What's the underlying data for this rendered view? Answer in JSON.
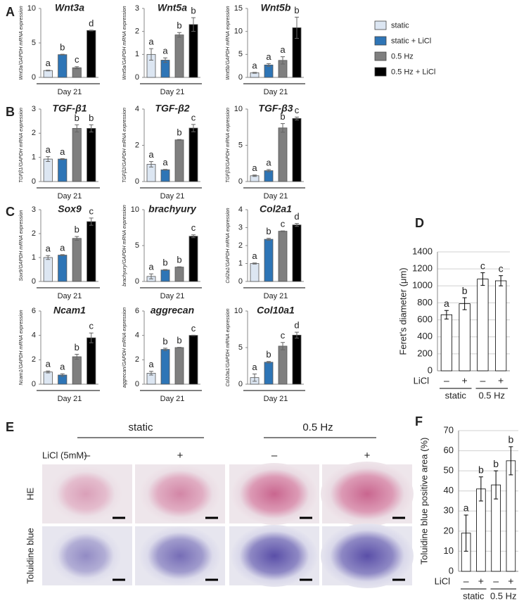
{
  "panel_labels": [
    "A",
    "B",
    "C",
    "D",
    "E",
    "F"
  ],
  "legend": [
    {
      "name": "static",
      "color": "#dce6f2"
    },
    {
      "name": "static + LiCl",
      "color": "#2e75b6"
    },
    {
      "name": "0.5 Hz",
      "color": "#7f7f7f"
    },
    {
      "name": "0.5 Hz + LiCl",
      "color": "#000000"
    }
  ],
  "chart_data": [
    {
      "type": "bar",
      "title": "Wnt3a",
      "ylabel": "Wnt3a/GAPDH mRNA expression",
      "xlabel": "Day 21",
      "values": [
        1.0,
        3.3,
        1.4,
        6.8
      ],
      "errors": [
        0.05,
        0.05,
        0.15,
        0.05
      ],
      "annotations": [
        "a",
        "b",
        "c",
        "d"
      ],
      "ylim": [
        0,
        10
      ],
      "yticks": [
        0,
        5,
        10
      ]
    },
    {
      "type": "bar",
      "title": "Wnt5a",
      "ylabel": "Wnt5a/GAPDH mRNA expression",
      "xlabel": "Day 21",
      "values": [
        1.0,
        0.75,
        1.85,
        2.3
      ],
      "errors": [
        0.25,
        0.1,
        0.1,
        0.3
      ],
      "annotations": [
        "a",
        "a",
        "b",
        "b"
      ],
      "ylim": [
        0,
        3
      ],
      "yticks": [
        0,
        1,
        2,
        3
      ]
    },
    {
      "type": "bar",
      "title": "Wnt5b",
      "ylabel": "Wnt5b/GAPDH mRNA expression",
      "xlabel": "Day 21",
      "values": [
        1.0,
        2.7,
        3.7,
        10.8
      ],
      "errors": [
        0.1,
        0.3,
        0.8,
        2.3
      ],
      "annotations": [
        "a",
        "a",
        "a",
        "b"
      ],
      "ylim": [
        0,
        15
      ],
      "yticks": [
        0,
        5,
        10,
        15
      ]
    },
    {
      "type": "bar",
      "title": "TGF-β1",
      "ylabel": "TGFβ1/GAPDH mRNA expression",
      "xlabel": "Day 21",
      "values": [
        0.93,
        0.93,
        2.2,
        2.2
      ],
      "errors": [
        0.1,
        0.02,
        0.15,
        0.15
      ],
      "annotations": [
        "a",
        "a",
        "b",
        "b"
      ],
      "ylim": [
        0,
        3
      ],
      "yticks": [
        0,
        1,
        2,
        3
      ]
    },
    {
      "type": "bar",
      "title": "TGF-β2",
      "ylabel": "TGFβ2/GAPDH mRNA expression",
      "xlabel": "Day 21",
      "values": [
        0.95,
        0.65,
        2.3,
        2.95
      ],
      "errors": [
        0.15,
        0.02,
        0.02,
        0.2
      ],
      "annotations": [
        "a",
        "a",
        "b",
        "c"
      ],
      "ylim": [
        0,
        4
      ],
      "yticks": [
        0,
        2,
        4
      ]
    },
    {
      "type": "bar",
      "title": "TGF-β3",
      "ylabel": "TGFβ3/GAPDH mRNA expression",
      "xlabel": "Day 21",
      "values": [
        0.8,
        1.5,
        7.4,
        8.7
      ],
      "errors": [
        0.1,
        0.15,
        0.6,
        0.2
      ],
      "annotations": [
        "a",
        "a",
        "b",
        "c"
      ],
      "ylim": [
        0,
        10
      ],
      "yticks": [
        0,
        5,
        10
      ]
    },
    {
      "type": "bar",
      "title": "Sox9",
      "ylabel": "Sox9/GAPDH mRNA expression",
      "xlabel": "Day 21",
      "values": [
        1.0,
        1.1,
        1.8,
        2.5
      ],
      "errors": [
        0.08,
        0.02,
        0.08,
        0.15
      ],
      "annotations": [
        "a",
        "a",
        "b",
        "c"
      ],
      "ylim": [
        0,
        3
      ],
      "yticks": [
        0,
        1,
        2,
        3
      ]
    },
    {
      "type": "bar",
      "title": "brachyury",
      "ylabel": "brachyury/GAPDH mRNA expression",
      "xlabel": "Day 21",
      "values": [
        0.7,
        1.6,
        2.0,
        6.3
      ],
      "errors": [
        0.35,
        0.05,
        0.05,
        0.2
      ],
      "annotations": [
        "a",
        "b",
        "b",
        "c"
      ],
      "ylim": [
        0,
        10
      ],
      "yticks": [
        0,
        5,
        10
      ]
    },
    {
      "type": "bar",
      "title": "Col2a1",
      "ylabel": "Col2a1/GAPDH mRNA expression",
      "xlabel": "Day 21",
      "values": [
        1.0,
        2.35,
        2.8,
        3.15
      ],
      "errors": [
        0.03,
        0.05,
        0.02,
        0.08
      ],
      "annotations": [
        "a",
        "b",
        "c",
        "d"
      ],
      "ylim": [
        0,
        4
      ],
      "yticks": [
        0,
        1,
        2,
        3,
        4
      ]
    },
    {
      "type": "bar",
      "title": "Ncam1",
      "ylabel": "Ncam1/GAPDH mRNA expression",
      "xlabel": "Day 21",
      "values": [
        1.0,
        0.75,
        2.25,
        3.8
      ],
      "errors": [
        0.08,
        0.1,
        0.2,
        0.4
      ],
      "annotations": [
        "a",
        "a",
        "b",
        "c"
      ],
      "ylim": [
        0,
        6
      ],
      "yticks": [
        0,
        2,
        4,
        6
      ]
    },
    {
      "type": "bar",
      "title": "aggrecan",
      "ylabel": "aggrecan/GAPDH mRNA expression",
      "xlabel": "Day 21",
      "values": [
        0.9,
        2.85,
        3.0,
        4.0
      ],
      "errors": [
        0.15,
        0.1,
        0.02,
        0.02
      ],
      "annotations": [
        "a",
        "b",
        "b",
        "c"
      ],
      "ylim": [
        0,
        6
      ],
      "yticks": [
        0,
        2,
        4,
        6
      ]
    },
    {
      "type": "bar",
      "title": "Col10a1",
      "ylabel": "Col10a1/GAPDH mRNA expression",
      "xlabel": "Day 21",
      "values": [
        0.9,
        3.0,
        5.2,
        6.7
      ],
      "errors": [
        0.5,
        0.1,
        0.5,
        0.4
      ],
      "annotations": [
        "a",
        "b",
        "c",
        "d"
      ],
      "ylim": [
        0,
        10
      ],
      "yticks": [
        0,
        5,
        10
      ]
    },
    {
      "type": "bar",
      "ylabel": "Feret's diameter (μm)",
      "x_prefix": "LiCl",
      "categories": [
        "–",
        "+",
        "–",
        "+"
      ],
      "groups": [
        "static",
        "0.5 Hz"
      ],
      "values": [
        660,
        790,
        1080,
        1060
      ],
      "errors": [
        50,
        70,
        75,
        60
      ],
      "annotations": [
        "a",
        "b",
        "c",
        "c"
      ],
      "color": "#ffffff",
      "grid": true,
      "ylim": [
        0,
        1400
      ],
      "yticks": [
        0,
        200,
        400,
        600,
        800,
        1000,
        1200,
        1400
      ]
    },
    {
      "type": "bar",
      "ylabel": "Toluidine blue positive area (%)",
      "x_prefix": "LiCl",
      "categories": [
        "–",
        "+",
        "–",
        "+"
      ],
      "groups": [
        "static",
        "0.5 Hz"
      ],
      "values": [
        19,
        41,
        43,
        55
      ],
      "errors": [
        9,
        6,
        7,
        7
      ],
      "annotations": [
        "a",
        "b",
        "b",
        "b"
      ],
      "color": "#ffffff",
      "grid": true,
      "ylim": [
        0,
        70
      ],
      "yticks": [
        0,
        10,
        20,
        30,
        40,
        50,
        60,
        70
      ]
    }
  ],
  "histology": {
    "column_groups": [
      "static",
      "0.5 Hz"
    ],
    "condition_label": "LiCl (5mM)",
    "conditions": [
      "–",
      "+",
      "–",
      "+"
    ],
    "rows": [
      "HE",
      "Toluidine blue"
    ]
  }
}
